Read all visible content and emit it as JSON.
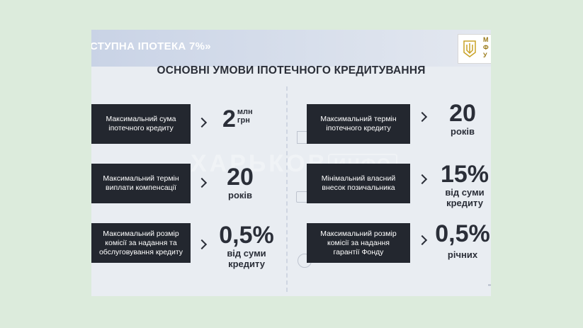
{
  "header": {
    "title": "СТУПНА ІПОТЕКА 7%»",
    "logo_text": "М\nФ\nУ"
  },
  "main_title": "ОСНОВНІ УМОВИ ІПОТЕЧНОГО КРЕДИТУВАННЯ",
  "watermark": {
    "main": "ХАРЬКОВ",
    "box": "ИНФО"
  },
  "left": [
    {
      "label": "Максимальний сума\nіпотечного кредиту",
      "value": "2",
      "unit": "млн\nгрн",
      "sub": ""
    },
    {
      "label": "Максимальний термін\nвиплати компенсації",
      "value": "20",
      "unit": "",
      "sub": "років"
    },
    {
      "label": "Максимальний розмір\nкомісії за надання та\nобслуговування кредиту",
      "value": "0,5%",
      "unit": "",
      "sub": "від суми\nкредиту"
    }
  ],
  "right": [
    {
      "label": "Максимальний термін\nіпотечного кредиту",
      "value": "20",
      "unit": "",
      "sub": "років"
    },
    {
      "label": "Мінімальний власний\nвнесок позичальника",
      "value": "15%",
      "unit": "",
      "sub": "від суми\nкредиту"
    },
    {
      "label": "Максимальний розмір\nкомісії за надання\nгарантії Фонду",
      "value": "0,5%",
      "unit": "",
      "sub": "річних"
    }
  ]
}
